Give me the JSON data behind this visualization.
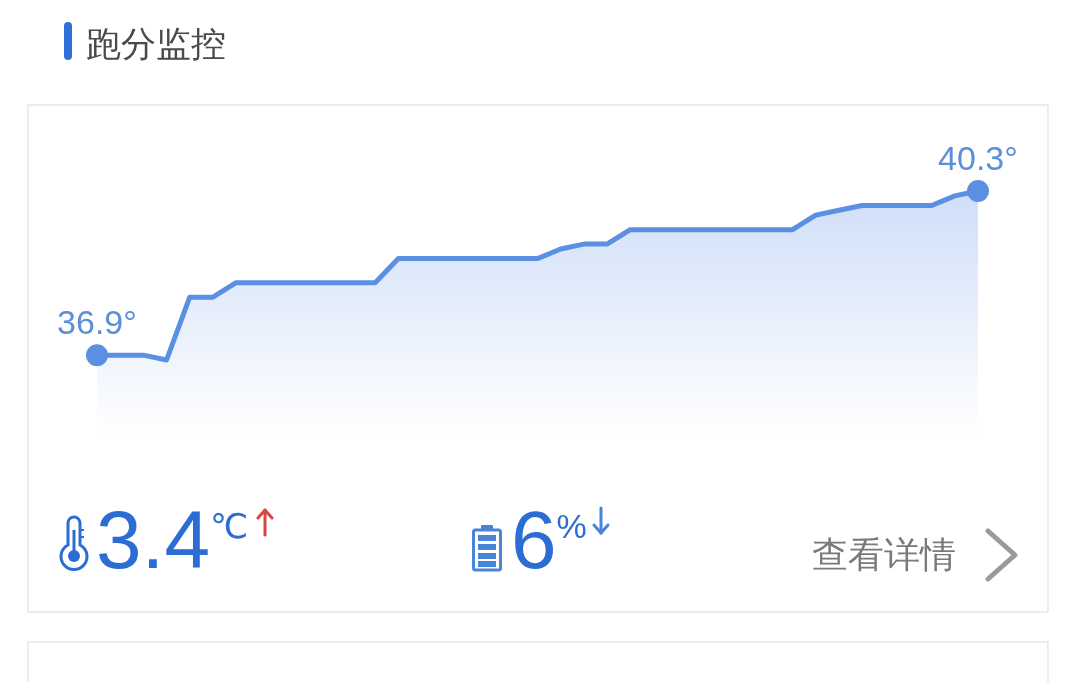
{
  "chart_data": {
    "type": "area",
    "title": "跑分监控",
    "categories": [
      null,
      null,
      null,
      null,
      null,
      null,
      null,
      null,
      null,
      null,
      null,
      null,
      null,
      null,
      null,
      null,
      null,
      null,
      null,
      null,
      null,
      null,
      null,
      null,
      null,
      null,
      null,
      null,
      null,
      null,
      null,
      null,
      null,
      null,
      null,
      null,
      null,
      null,
      null
    ],
    "values": [
      36.9,
      36.9,
      36.9,
      36.8,
      38.1,
      38.1,
      38.4,
      38.4,
      38.4,
      38.4,
      38.4,
      38.4,
      38.4,
      38.9,
      38.9,
      38.9,
      38.9,
      38.9,
      38.9,
      38.9,
      39.1,
      39.2,
      39.2,
      39.5,
      39.5,
      39.5,
      39.5,
      39.5,
      39.5,
      39.5,
      39.5,
      39.8,
      39.9,
      40.0,
      40.0,
      40.0,
      40.0,
      40.2,
      40.3
    ],
    "value_labels": [
      "36.9°",
      null,
      null,
      null,
      null,
      null,
      null,
      null,
      null,
      null,
      null,
      null,
      null,
      null,
      null,
      null,
      null,
      null,
      null,
      null,
      null,
      null,
      null,
      null,
      null,
      null,
      null,
      null,
      null,
      null,
      null,
      null,
      null,
      null,
      null,
      null,
      null,
      null,
      "40.3°"
    ],
    "color": "#5b8fe2",
    "annotations": [
      "3.4$^{℃}$",
      "6$^{%}$",
      "查看详情"
    ]
  }
}
